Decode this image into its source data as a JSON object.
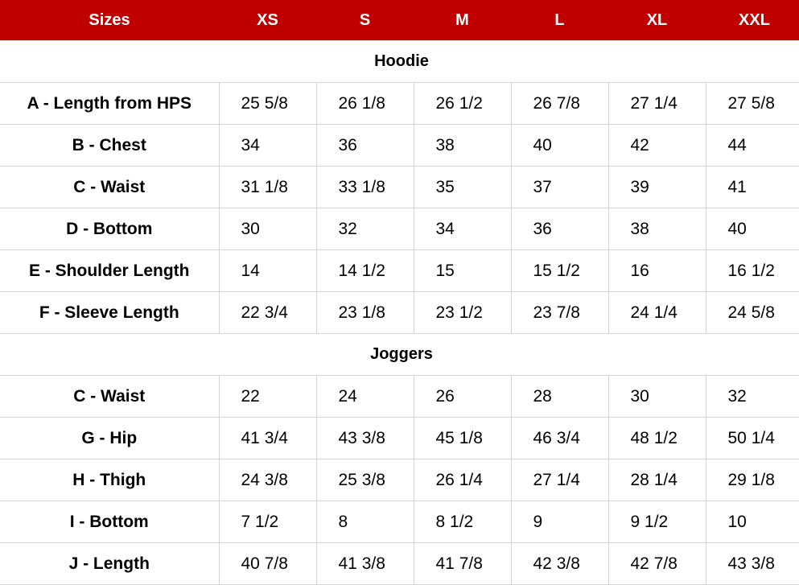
{
  "header": {
    "label": "Sizes",
    "sizes": [
      "XS",
      "S",
      "M",
      "L",
      "XL",
      "XXL"
    ]
  },
  "header_color": "#C00000",
  "sections": [
    {
      "title": "Hoodie",
      "rows": [
        {
          "label": "A - Length from HPS",
          "values": [
            "25 5/8",
            "26 1/8",
            "26 1/2",
            "26 7/8",
            "27 1/4",
            "27 5/8"
          ]
        },
        {
          "label": "B - Chest",
          "values": [
            "34",
            "36",
            "38",
            "40",
            "42",
            "44"
          ]
        },
        {
          "label": "C - Waist",
          "values": [
            "31 1/8",
            "33 1/8",
            "35",
            "37",
            "39",
            "41"
          ]
        },
        {
          "label": "D - Bottom",
          "values": [
            "30",
            "32",
            "34",
            "36",
            "38",
            "40"
          ]
        },
        {
          "label": "E - Shoulder Length",
          "values": [
            "14",
            "14 1/2",
            "15",
            "15 1/2",
            "16",
            "16 1/2"
          ]
        },
        {
          "label": "F - Sleeve Length",
          "values": [
            "22 3/4",
            "23 1/8",
            "23 1/2",
            "23 7/8",
            "24 1/4",
            "24 5/8"
          ]
        }
      ]
    },
    {
      "title": "Joggers",
      "rows": [
        {
          "label": "C - Waist",
          "values": [
            "22",
            "24",
            "26",
            "28",
            "30",
            "32"
          ]
        },
        {
          "label": "G - Hip",
          "values": [
            "41 3/4",
            "43 3/8",
            "45 1/8",
            "46 3/4",
            "48 1/2",
            "50 1/4"
          ]
        },
        {
          "label": "H - Thigh",
          "values": [
            "24 3/8",
            "25 3/8",
            "26 1/4",
            "27 1/4",
            "28 1/4",
            "29 1/8"
          ]
        },
        {
          "label": "I - Bottom",
          "values": [
            "7 1/2",
            "8",
            "8 1/2",
            "9",
            "9 1/2",
            "10"
          ]
        },
        {
          "label": "J - Length",
          "values": [
            "40 7/8",
            "41 3/8",
            "41 7/8",
            "42 3/8",
            "42 7/8",
            "43 3/8"
          ]
        }
      ]
    }
  ]
}
